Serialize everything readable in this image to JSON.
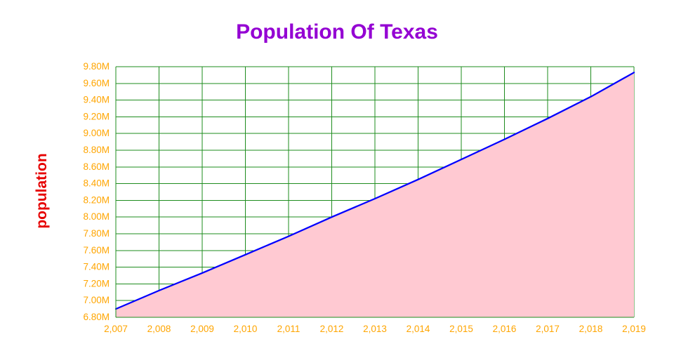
{
  "chart_data": {
    "type": "area",
    "title": "Population Of Texas",
    "xlabel": "",
    "ylabel": "population",
    "categories": [
      2007,
      2008,
      2009,
      2010,
      2011,
      2012,
      2013,
      2014,
      2015,
      2016,
      2017,
      2018,
      2019
    ],
    "x_tick_labels": [
      "2,007",
      "2,008",
      "2,009",
      "2,010",
      "2,011",
      "2,012",
      "2,013",
      "2,014",
      "2,015",
      "2,016",
      "2,017",
      "2,018",
      "2,019"
    ],
    "series": [
      {
        "name": "population",
        "values": [
          6.9,
          7.12,
          7.33,
          7.55,
          7.77,
          8.0,
          8.22,
          8.45,
          8.69,
          8.93,
          9.18,
          9.44,
          9.73
        ]
      }
    ],
    "ylim": [
      6.8,
      9.8
    ],
    "y_tick_step": 0.2,
    "y_tick_labels": [
      "6.80M",
      "7.00M",
      "7.20M",
      "7.40M",
      "7.60M",
      "7.80M",
      "8.00M",
      "8.20M",
      "8.40M",
      "8.60M",
      "8.80M",
      "9.00M",
      "9.20M",
      "9.40M",
      "9.60M",
      "9.80M"
    ],
    "grid": true,
    "legend": "none",
    "colors": {
      "title": "#9400D3",
      "axis_title": "#E60000",
      "tick_labels": "#FFA500",
      "grid": "#1E8C1E",
      "line": "#0000FF",
      "fill": "#FFC9D2",
      "background": "#FFFFFF"
    }
  }
}
